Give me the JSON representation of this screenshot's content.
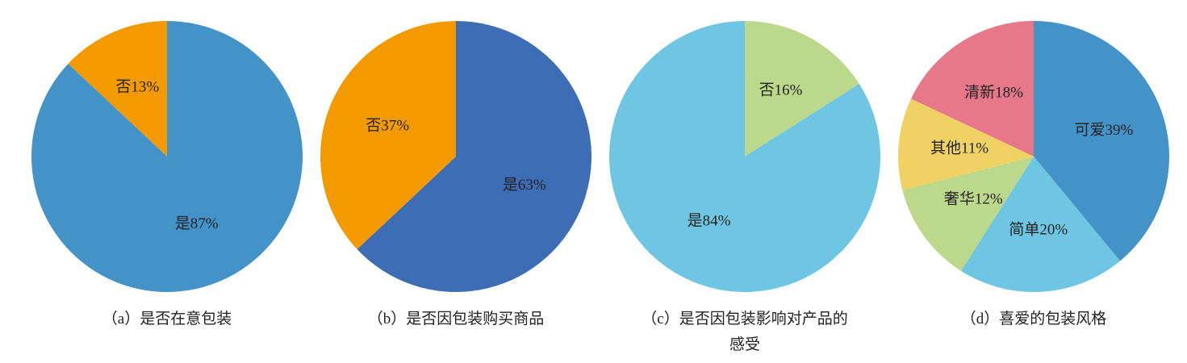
{
  "chart_data": [
    {
      "type": "pie",
      "title": "（a）是否在意包装",
      "values": [
        87,
        13
      ],
      "value_labels": [
        "是87%",
        "否13%"
      ],
      "colors": [
        "#4393c9",
        "#f39a00"
      ]
    },
    {
      "type": "pie",
      "title": "（b）是否因包装购买商品",
      "values": [
        63,
        37
      ],
      "value_labels": [
        "是63%",
        "否37%"
      ],
      "colors": [
        "#3d6db5",
        "#f39a00"
      ]
    },
    {
      "type": "pie",
      "title": "（c）是否因包装影响对产品的感受",
      "values": [
        16,
        84
      ],
      "value_labels": [
        "否16%",
        "是84%"
      ],
      "colors": [
        "#bcd88a",
        "#6ec6e3"
      ]
    },
    {
      "type": "pie",
      "title": "（d）喜爱的包装风格",
      "values": [
        39,
        20,
        12,
        11,
        18
      ],
      "value_labels": [
        "可爱39%",
        "简单20%",
        "奢华12%",
        "其他11%",
        "清新18%"
      ],
      "colors": [
        "#4393c9",
        "#6ec6e3",
        "#bcd88a",
        "#f0d264",
        "#e7788a"
      ]
    }
  ]
}
